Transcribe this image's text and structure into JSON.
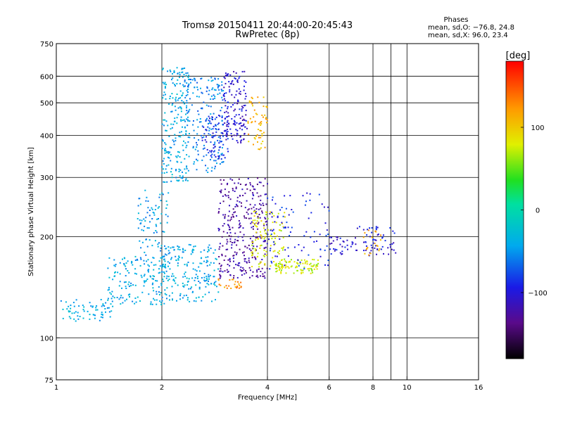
{
  "chart_data": {
    "type": "scatter",
    "title": "Tromsø 20150411 20:44:00-20:45:43",
    "subtitle": "RwPretec (8p)",
    "xlabel": "Frequency [MHz]",
    "ylabel": "Stationary phase Virtual Height [km]",
    "x_scale": "log",
    "y_scale": "log",
    "xlim": [
      1,
      16
    ],
    "ylim": [
      75,
      750
    ],
    "x_ticks": [
      1,
      2,
      4,
      6,
      8,
      10,
      16
    ],
    "y_ticks": [
      75,
      100,
      200,
      300,
      400,
      500,
      600,
      750
    ],
    "x_grid": [
      2,
      4,
      6,
      8,
      9,
      10
    ],
    "y_grid": [
      100,
      200,
      300,
      400,
      500,
      600
    ],
    "grid": true,
    "stats": {
      "heading": "Phases",
      "line1": "mean, sd,O: −76.8, 24.8",
      "line2": "mean, sd,X:  96.0, 23.4"
    },
    "colorbar": {
      "label": "[deg]",
      "range": [
        -180,
        180
      ],
      "ticks": [
        "100",
        "0",
        "−100"
      ],
      "tick_values": [
        100,
        0,
        -100
      ],
      "colormap": "rainbow"
    },
    "clusters": [
      {
        "x": [
          1.0,
          1.45
        ],
        "y": [
          112,
          130
        ],
        "n": 70,
        "phase": -40
      },
      {
        "x": [
          1.4,
          2.05
        ],
        "y": [
          125,
          175
        ],
        "n": 160,
        "phase": -40
      },
      {
        "x": [
          1.7,
          2.1
        ],
        "y": [
          170,
          275
        ],
        "n": 90,
        "phase": -45
      },
      {
        "x": [
          2.0,
          2.9
        ],
        "y": [
          128,
          190
        ],
        "n": 200,
        "phase": -40
      },
      {
        "x": [
          2.0,
          2.4
        ],
        "y": [
          290,
          640
        ],
        "n": 220,
        "phase": -40
      },
      {
        "x": [
          2.3,
          3.0
        ],
        "y": [
          310,
          600
        ],
        "n": 180,
        "phase": -55
      },
      {
        "x": [
          2.6,
          3.1
        ],
        "y": [
          340,
          460
        ],
        "n": 80,
        "phase": -90
      },
      {
        "x": [
          3.0,
          3.5
        ],
        "y": [
          380,
          620
        ],
        "n": 150,
        "phase": -105
      },
      {
        "x": [
          3.5,
          4.0
        ],
        "y": [
          360,
          520
        ],
        "n": 60,
        "phase": 110
      },
      {
        "x": [
          2.9,
          4.0
        ],
        "y": [
          150,
          300
        ],
        "n": 320,
        "phase": -125
      },
      {
        "x": [
          2.9,
          3.4
        ],
        "y": [
          140,
          150
        ],
        "n": 25,
        "phase": 125
      },
      {
        "x": [
          3.6,
          4.5
        ],
        "y": [
          160,
          240
        ],
        "n": 110,
        "phase": 80
      },
      {
        "x": [
          4.2,
          5.6
        ],
        "y": [
          155,
          172
        ],
        "n": 90,
        "phase": 75
      },
      {
        "x": [
          4.0,
          6.0
        ],
        "y": [
          160,
          270
        ],
        "n": 90,
        "phase": -90
      },
      {
        "x": [
          6.0,
          7.0
        ],
        "y": [
          175,
          200
        ],
        "n": 30,
        "phase": -100
      },
      {
        "x": [
          7.0,
          9.3
        ],
        "y": [
          175,
          215
        ],
        "n": 60,
        "phase": -100
      },
      {
        "x": [
          7.5,
          8.5
        ],
        "y": [
          170,
          210
        ],
        "n": 20,
        "phase": 110
      }
    ]
  }
}
